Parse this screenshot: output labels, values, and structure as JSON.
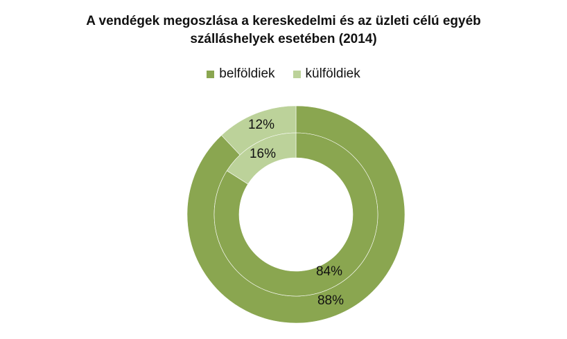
{
  "chart_data": {
    "type": "pie",
    "subtype": "double-donut",
    "title_line1": "A vendégek megoszlása a kereskedelmi és az üzleti célú egyéb",
    "title_line2": "szálláshelyek esetében (2014)",
    "legend": {
      "position": "top"
    },
    "categories": [
      "belföldiek",
      "külföldiek"
    ],
    "colors": [
      "#8aa650",
      "#bcd29a"
    ],
    "rings": [
      {
        "ring": "outer",
        "values": [
          88,
          12
        ],
        "labels": [
          "88%",
          "12%"
        ]
      },
      {
        "ring": "inner",
        "values": [
          84,
          16
        ],
        "labels": [
          "84%",
          "16%"
        ]
      }
    ]
  }
}
